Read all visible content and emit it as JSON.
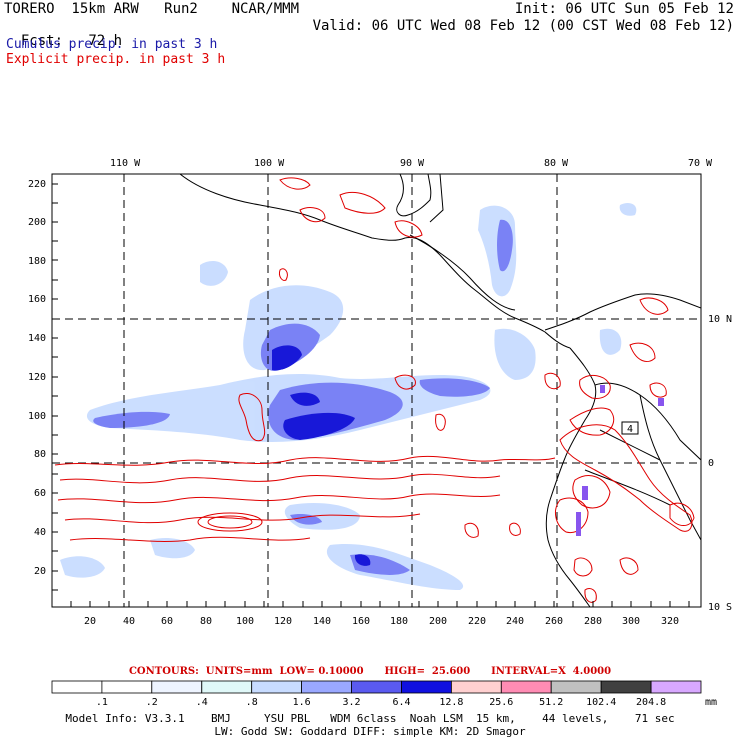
{
  "header": {
    "title": "TORERO  15km ARW   Run2    NCAR/MMM",
    "init": "Init: 06 UTC Sun 05 Feb 12",
    "fcst_label": "Fcst:",
    "fcst_value": "72 h",
    "valid": "Valid: 06 UTC Wed 08 Feb 12 (00 CST Wed 08 Feb 12)",
    "field1": "Cumulus precip. in past 3 h",
    "field2": "Explicit precip. in past 3 h",
    "field1_color": "#1a1aa8",
    "field2_color": "#e00000"
  },
  "map": {
    "top_lon_labels": [
      "110 W",
      "100 W",
      "90 W",
      "80 W",
      "70 W"
    ],
    "right_lat_labels": [
      "10 N",
      "0",
      "10 S"
    ],
    "left_grid_labels": [
      "220",
      "200",
      "180",
      "160",
      "140",
      "120",
      "100",
      "80",
      "60",
      "40",
      "20"
    ],
    "bottom_grid_labels": [
      "20",
      "40",
      "60",
      "80",
      "100",
      "120",
      "140",
      "160",
      "180",
      "200",
      "220",
      "240",
      "260",
      "280",
      "300",
      "320"
    ],
    "box_label": "4"
  },
  "contours": {
    "text": "CONTOURS:  UNITS=mm  LOW= 0.10000      HIGH=  25.600      INTERVAL=X  4.0000"
  },
  "colorbar": {
    "labels": [
      ".1",
      ".2",
      ".4",
      ".8",
      "1.6",
      "3.2",
      "6.4",
      "12.8",
      "25.6",
      "51.2",
      "102.4",
      "204.8"
    ],
    "units": "mm",
    "colors": [
      "#ffffff",
      "#ffffff",
      "#eef4ff",
      "#e0f8f8",
      "#c8dcff",
      "#9aa8ff",
      "#5a5af0",
      "#1010e0",
      "#ffd0d0",
      "#ff8cb4",
      "#c0c0c0",
      "#404040",
      "#d8a8ff"
    ]
  },
  "model_info": {
    "line1": "Model Info: V3.3.1    BMJ     YSU PBL   WDM 6class  Noah LSM  15 km,    44 levels,    71 sec",
    "line2": "LW: Godd SW: Goddard DIFF: simple KM: 2D Smagor"
  }
}
